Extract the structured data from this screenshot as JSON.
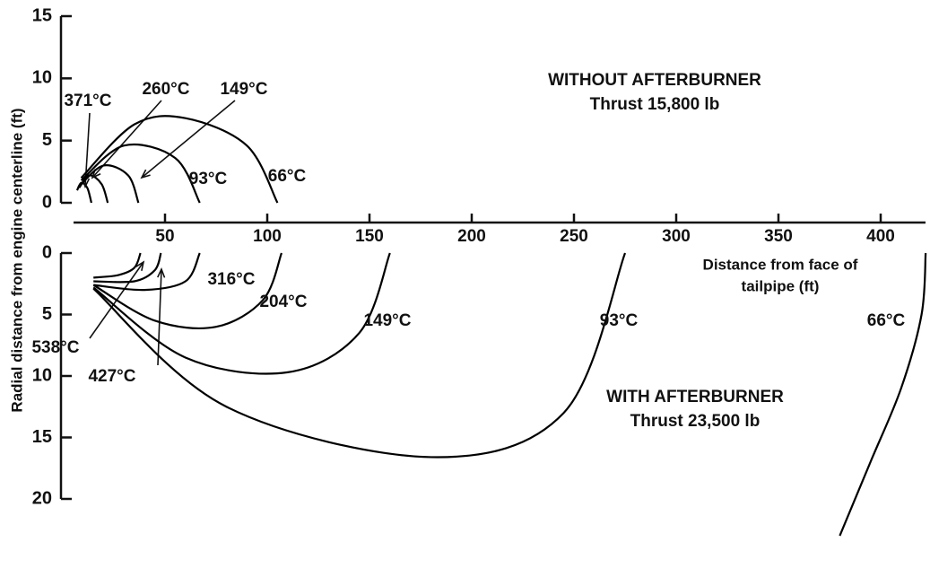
{
  "chart_data": [
    {
      "type": "line",
      "title": "WITHOUT AFTERBURNER",
      "subtitle": "Thrust 15,800 lb",
      "ylabel": "Radial distance from engine centerline (ft)",
      "ylim": [
        0,
        15
      ],
      "yticks": [
        0,
        5,
        10,
        15
      ],
      "color": "#000000",
      "series": [
        {
          "name": "371°C",
          "x": [
            7,
            9,
            12,
            14
          ],
          "values": [
            1,
            1.6,
            1.2,
            0
          ]
        },
        {
          "name": "260°C",
          "x": [
            8,
            13,
            19,
            22
          ],
          "values": [
            1.2,
            2.2,
            1.5,
            0
          ]
        },
        {
          "name": "149°C",
          "x": [
            9,
            20,
            32,
            37
          ],
          "values": [
            1.5,
            3,
            2.2,
            0
          ]
        },
        {
          "name": "93°C",
          "x": [
            9,
            30,
            55,
            67
          ],
          "values": [
            1.8,
            4.6,
            3.6,
            0
          ]
        },
        {
          "name": "66°C",
          "x": [
            9,
            35,
            60,
            90,
            105
          ],
          "values": [
            2,
            6.3,
            6.8,
            4.6,
            0
          ]
        }
      ]
    },
    {
      "type": "line",
      "title": "WITH AFTERBURNER",
      "subtitle": "Thrust 23,500 lb",
      "xlabel": [
        "Distance from face of",
        "tailpipe (ft)"
      ],
      "xlim": [
        0,
        420
      ],
      "xticks": [
        50,
        100,
        150,
        200,
        250,
        300,
        350,
        400
      ],
      "ylim": [
        0,
        20
      ],
      "yticks": [
        0,
        5,
        10,
        15,
        20
      ],
      "y_inverted": true,
      "color": "#000000",
      "series": [
        {
          "name": "538°C",
          "x": [
            15,
            27,
            35,
            38
          ],
          "values": [
            2,
            1.8,
            1.2,
            0
          ]
        },
        {
          "name": "427°C",
          "x": [
            15,
            35,
            45,
            48
          ],
          "values": [
            2.3,
            2.3,
            1.4,
            0
          ]
        },
        {
          "name": "316°C",
          "x": [
            15,
            40,
            60,
            67
          ],
          "values": [
            2.6,
            3,
            2.3,
            0
          ]
        },
        {
          "name": "204°C",
          "x": [
            15,
            45,
            75,
            98,
            107
          ],
          "values": [
            2.6,
            5.5,
            6,
            3.8,
            0
          ]
        },
        {
          "name": "149°C",
          "x": [
            15,
            60,
            110,
            145,
            160
          ],
          "values": [
            2.8,
            8.5,
            9.7,
            6.5,
            0
          ]
        },
        {
          "name": "93°C",
          "x": [
            15,
            80,
            180,
            245,
            275
          ],
          "values": [
            2.9,
            12.5,
            16.6,
            13,
            0
          ]
        },
        {
          "name": "66°C",
          "x": [
            422,
            420,
            410,
            395,
            380
          ],
          "values": [
            0,
            5,
            11,
            17,
            23
          ]
        }
      ]
    }
  ]
}
